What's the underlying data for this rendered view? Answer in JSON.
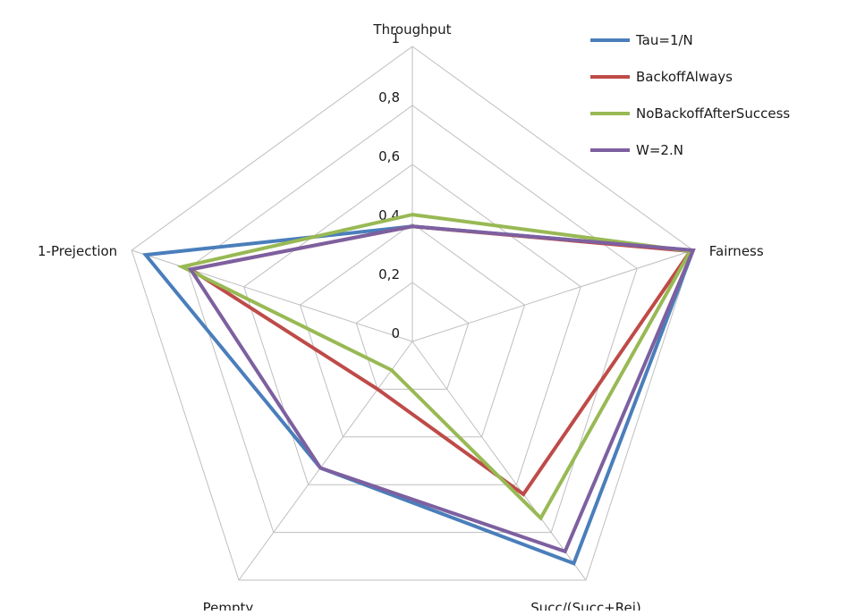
{
  "chart_data": {
    "type": "radar",
    "axes": [
      "Throughput",
      "Fairness",
      "Succ/(Succ+Rej)",
      "Pempty",
      "1-Prejection"
    ],
    "rlim": [
      0,
      1
    ],
    "ticks": [
      "0",
      "0,2",
      "0,4",
      "0,6",
      "0,8",
      "1"
    ],
    "tick_values": [
      0,
      0.2,
      0.4,
      0.6,
      0.8,
      1
    ],
    "grid": true,
    "legend_position": "top-right",
    "series": [
      {
        "name": "Tau=1/N",
        "color": "#4a7ebb",
        "values": [
          0.39,
          1.0,
          0.93,
          0.53,
          0.95
        ]
      },
      {
        "name": "BackoffAlways",
        "color": "#be4b48",
        "values": [
          0.39,
          0.99,
          0.64,
          0.2,
          0.79
        ]
      },
      {
        "name": "NoBackoffAfterSuccess",
        "color": "#98b954",
        "values": [
          0.43,
          0.99,
          0.74,
          0.12,
          0.82
        ]
      },
      {
        "name": "W=2.N",
        "color": "#7d60a0",
        "values": [
          0.39,
          1.0,
          0.88,
          0.53,
          0.79
        ]
      }
    ]
  }
}
